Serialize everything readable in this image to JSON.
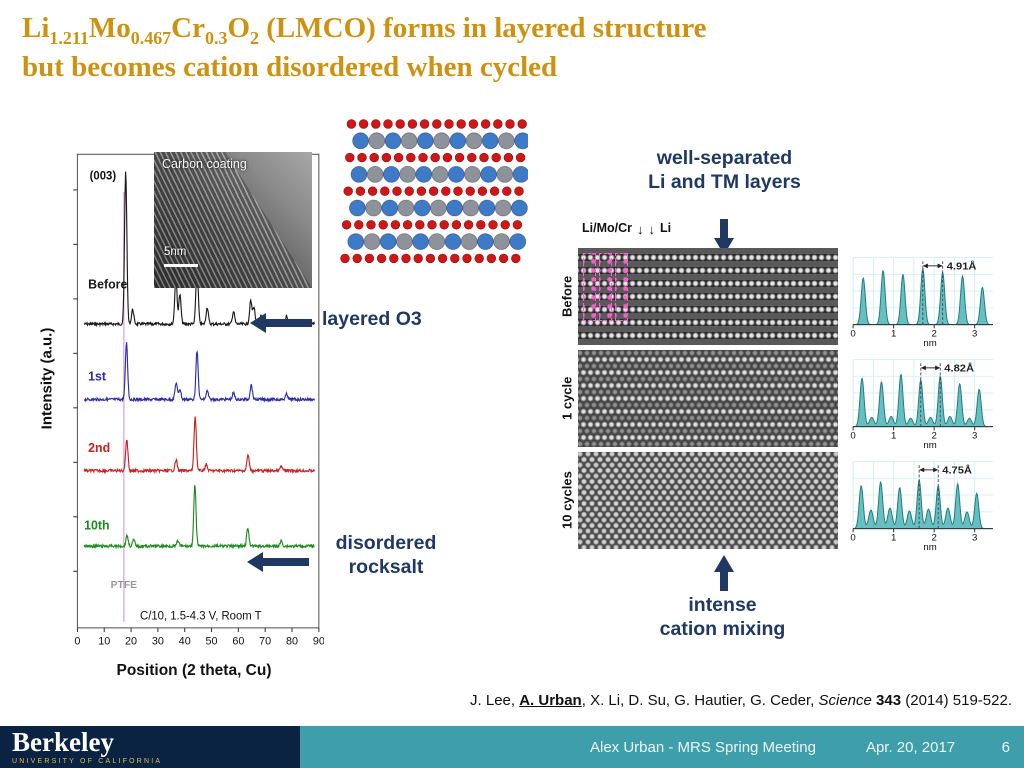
{
  "title": {
    "line1_parts": [
      {
        "t": "Li"
      },
      {
        "sub": "1.211"
      },
      {
        "t": "Mo"
      },
      {
        "sub": "0.467"
      },
      {
        "t": "Cr"
      },
      {
        "sub": "0.3"
      },
      {
        "t": "O"
      },
      {
        "sub": "2"
      },
      {
        "t": " (LMCO) forms in layered structure"
      }
    ],
    "line2": "but becomes cation disordered when cycled"
  },
  "annotations": {
    "layered_o3": "layered O3",
    "disordered": [
      "disordered",
      "rocksalt"
    ],
    "well_separated": [
      "well-separated",
      "Li and TM layers"
    ],
    "cation_mixing": [
      "intense",
      "cation mixing"
    ]
  },
  "inset": {
    "label": "Carbon coating",
    "scale": "5nm"
  },
  "stem": {
    "header_left": "Li/Mo/Cr",
    "header_right": "Li",
    "rows": [
      {
        "label": "Before"
      },
      {
        "label": "1 cycle"
      },
      {
        "label": "10 cycles"
      }
    ]
  },
  "citation": {
    "parts": [
      {
        "t": "J. Lee, "
      },
      {
        "t": "A. Urban",
        "b": true,
        "u": true
      },
      {
        "t": ", X. Li, D. Su, G. Hautier, G. Ceder, "
      },
      {
        "t": "Science",
        "i": true
      },
      {
        "t": " "
      },
      {
        "t": "343",
        "b": true
      },
      {
        "t": " (2014) 519-522."
      }
    ]
  },
  "footer": {
    "logo_title": "Berkeley",
    "logo_subtitle": "UNIVERSITY OF CALIFORNIA",
    "meeting": "Alex Urban - MRS Spring Meeting",
    "date": "Apr. 20, 2017",
    "page": "6"
  },
  "colors": {
    "title_orange": "#CE9213",
    "annotation_navy": "#1F3864",
    "footer_navy": "#0B2342",
    "footer_teal": "#3E9FAA",
    "berkeley_gold": "#E8BE4F",
    "profile_teal": "#57B8BB"
  },
  "chart_data": [
    {
      "id": "xrd",
      "type": "line",
      "title": "XRD patterns of LMCO before and after cycling",
      "xlabel": "Position (2 theta, Cu)",
      "ylabel": "Intensity (a.u.)",
      "xlim": [
        0,
        90
      ],
      "xticks": [
        0,
        10,
        20,
        30,
        40,
        50,
        60,
        70,
        80,
        90
      ],
      "peak_label": "(003)",
      "condition": "C/10, 1.5-4.3 V, Room T",
      "ptfe": {
        "label": "PTFE",
        "x": 17.3
      },
      "legend_position": "left-of-curves",
      "series": [
        {
          "name": "Before",
          "color": "#1a1a1a",
          "baseline": 168,
          "label_x": 4,
          "label_dy": -34,
          "peaks": [
            [
              18,
              146
            ],
            [
              20.6,
              14
            ],
            [
              36.7,
              44
            ],
            [
              38.2,
              28
            ],
            [
              44.6,
              58
            ],
            [
              48.4,
              16
            ],
            [
              58.2,
              12
            ],
            [
              64.6,
              22
            ],
            [
              65.8,
              16
            ],
            [
              68.3,
              8
            ],
            [
              78,
              8
            ]
          ]
        },
        {
          "name": "1st",
          "color": "#2b2bb0",
          "baseline": 240,
          "label_x": 4,
          "label_dy": -18,
          "peaks": [
            [
              18.3,
              54
            ],
            [
              36.8,
              16
            ],
            [
              38.2,
              10
            ],
            [
              44.6,
              46
            ],
            [
              48.4,
              8
            ],
            [
              58.2,
              6
            ],
            [
              64.8,
              14
            ],
            [
              78,
              5
            ]
          ]
        },
        {
          "name": "2nd",
          "color": "#cc2020",
          "baseline": 308,
          "label_x": 4,
          "label_dy": -18,
          "peaks": [
            [
              18.4,
              30
            ],
            [
              36.8,
              10
            ],
            [
              43.9,
              52
            ],
            [
              48,
              6
            ],
            [
              63.6,
              15
            ],
            [
              76,
              4
            ]
          ]
        },
        {
          "name": "10th",
          "color": "#1d8a1d",
          "baseline": 380,
          "label_x": 2.5,
          "label_dy": -16,
          "peaks": [
            [
              18.5,
              10
            ],
            [
              21,
              6
            ],
            [
              37.5,
              5
            ],
            [
              43.8,
              58
            ],
            [
              63.5,
              17
            ],
            [
              76,
              5
            ]
          ]
        }
      ]
    },
    {
      "id": "stem_profiles",
      "type": "area",
      "xlabel": "nm",
      "xticks": [
        0,
        1,
        2,
        3
      ],
      "fill": "#57b8bb",
      "stroke": "#1f7f82",
      "rows": [
        {
          "name": "Before",
          "label": "4.91Å",
          "marker": [
            1.72,
            2.21
          ],
          "main": [
            [
              0.25,
              50
            ],
            [
              0.74,
              58
            ],
            [
              1.23,
              54
            ],
            [
              1.72,
              60
            ],
            [
              2.21,
              56
            ],
            [
              2.7,
              52
            ],
            [
              3.19,
              40
            ]
          ],
          "minor": []
        },
        {
          "name": "1 cycle",
          "label": "4.82Å",
          "marker": [
            1.67,
            2.15
          ],
          "main": [
            [
              0.22,
              52
            ],
            [
              0.7,
              48
            ],
            [
              1.18,
              56
            ],
            [
              1.67,
              50
            ],
            [
              2.15,
              54
            ],
            [
              2.63,
              46
            ],
            [
              3.11,
              40
            ]
          ],
          "minor": [
            [
              0.46,
              10
            ],
            [
              0.94,
              11
            ],
            [
              1.42,
              9
            ],
            [
              1.91,
              10
            ],
            [
              2.39,
              11
            ],
            [
              2.87,
              9
            ]
          ]
        },
        {
          "name": "10 cycles",
          "label": "4.75Å",
          "marker": [
            1.63,
            2.1
          ],
          "main": [
            [
              0.2,
              46
            ],
            [
              0.68,
              50
            ],
            [
              1.15,
              44
            ],
            [
              1.63,
              52
            ],
            [
              2.1,
              46
            ],
            [
              2.58,
              48
            ],
            [
              3.05,
              38
            ]
          ],
          "minor": [
            [
              0.44,
              20
            ],
            [
              0.91,
              22
            ],
            [
              1.39,
              19
            ],
            [
              1.86,
              21
            ],
            [
              2.34,
              22
            ],
            [
              2.81,
              18
            ]
          ]
        }
      ]
    }
  ]
}
